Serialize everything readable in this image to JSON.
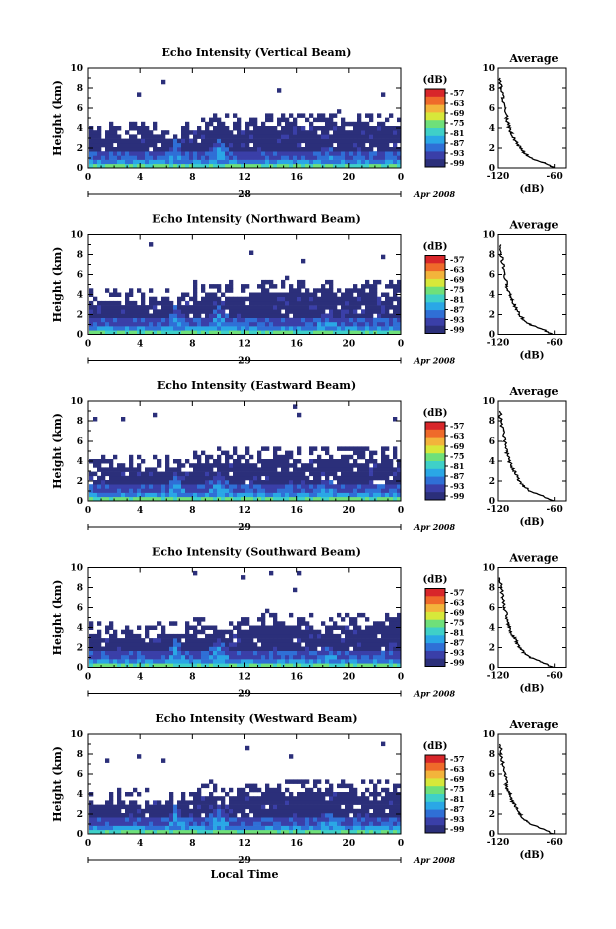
{
  "chart_data": [
    {
      "type": "heatmap",
      "title": "Echo Intensity (Vertical Beam)",
      "ylabel": "Height (km)",
      "xlabel": "",
      "x_ticks": [
        "0",
        "4",
        "8",
        "12",
        "16",
        "20",
        "0"
      ],
      "y_ticks": [
        "0",
        "2",
        "4",
        "6",
        "8",
        "10"
      ],
      "xlim": [
        0,
        24
      ],
      "ylim": [
        0,
        10
      ],
      "date_label": "28",
      "month_year": "Apr 2008",
      "colorbar": {
        "unit": "(dB)",
        "ticks": [
          "-57",
          "-63",
          "-69",
          "-75",
          "-81",
          "-87",
          "-93",
          "-99"
        ]
      },
      "average": {
        "title": "Average",
        "xlabel": "(dB)",
        "x_ticks": [
          "-120",
          "-60"
        ],
        "y_ticks": [
          "0",
          "2",
          "4",
          "6",
          "8",
          "10"
        ],
        "xlim": [
          -120,
          -48
        ],
        "ylim": [
          0,
          10
        ],
        "height_km": [
          0,
          0.5,
          1,
          1.5,
          2,
          2.5,
          3,
          3.5,
          4,
          4.5,
          5,
          6,
          7,
          8,
          9
        ],
        "value_db": [
          -60,
          -70,
          -85,
          -92,
          -96,
          -100,
          -103,
          -106,
          -108,
          -110,
          -111,
          -113,
          -115,
          -117,
          -118
        ]
      }
    },
    {
      "type": "heatmap",
      "title": "Echo Intensity (Northward Beam)",
      "ylabel": "Height (km)",
      "xlabel": "",
      "x_ticks": [
        "0",
        "4",
        "8",
        "12",
        "16",
        "20",
        "0"
      ],
      "y_ticks": [
        "0",
        "2",
        "4",
        "6",
        "8",
        "10"
      ],
      "xlim": [
        0,
        24
      ],
      "ylim": [
        0,
        10
      ],
      "date_label": "29",
      "month_year": "Apr 2008",
      "colorbar": {
        "unit": "(dB)",
        "ticks": [
          "-57",
          "-63",
          "-69",
          "-75",
          "-81",
          "-87",
          "-93",
          "-99"
        ]
      },
      "average": {
        "title": "Average",
        "xlabel": "(dB)",
        "x_ticks": [
          "-120",
          "-60"
        ],
        "y_ticks": [
          "0",
          "2",
          "4",
          "6",
          "8",
          "10"
        ],
        "xlim": [
          -120,
          -48
        ],
        "ylim": [
          0,
          10
        ],
        "height_km": [
          0,
          0.5,
          1,
          1.5,
          2,
          2.5,
          3,
          3.5,
          4,
          4.5,
          5,
          6,
          7,
          8,
          9
        ],
        "value_db": [
          -62,
          -72,
          -86,
          -93,
          -97,
          -100,
          -103,
          -106,
          -108,
          -110,
          -111,
          -113,
          -115,
          -117,
          -118
        ]
      }
    },
    {
      "type": "heatmap",
      "title": "Echo Intensity (Eastward Beam)",
      "ylabel": "Height (km)",
      "xlabel": "",
      "x_ticks": [
        "0",
        "4",
        "8",
        "12",
        "16",
        "20",
        "0"
      ],
      "y_ticks": [
        "0",
        "2",
        "4",
        "6",
        "8",
        "10"
      ],
      "xlim": [
        0,
        24
      ],
      "ylim": [
        0,
        10
      ],
      "date_label": "29",
      "month_year": "Apr 2008",
      "colorbar": {
        "unit": "(dB)",
        "ticks": [
          "-57",
          "-63",
          "-69",
          "-75",
          "-81",
          "-87",
          "-93",
          "-99"
        ]
      },
      "average": {
        "title": "Average",
        "xlabel": "(dB)",
        "x_ticks": [
          "-120",
          "-60"
        ],
        "y_ticks": [
          "0",
          "2",
          "4",
          "6",
          "8",
          "10"
        ],
        "xlim": [
          -120,
          -48
        ],
        "ylim": [
          0,
          10
        ],
        "height_km": [
          0,
          0.5,
          1,
          1.5,
          2,
          2.5,
          3,
          3.5,
          4,
          4.5,
          5,
          6,
          7,
          8,
          9
        ],
        "value_db": [
          -62,
          -72,
          -86,
          -93,
          -97,
          -100,
          -103,
          -106,
          -108,
          -110,
          -111,
          -113,
          -115,
          -117,
          -118
        ]
      }
    },
    {
      "type": "heatmap",
      "title": "Echo Intensity (Southward Beam)",
      "ylabel": "Height (km)",
      "xlabel": "",
      "x_ticks": [
        "0",
        "4",
        "8",
        "12",
        "16",
        "20",
        "0"
      ],
      "y_ticks": [
        "0",
        "2",
        "4",
        "6",
        "8",
        "10"
      ],
      "xlim": [
        0,
        24
      ],
      "ylim": [
        0,
        10
      ],
      "date_label": "29",
      "month_year": "Apr 2008",
      "colorbar": {
        "unit": "(dB)",
        "ticks": [
          "-57",
          "-63",
          "-69",
          "-75",
          "-81",
          "-87",
          "-93",
          "-99"
        ]
      },
      "average": {
        "title": "Average",
        "xlabel": "(dB)",
        "x_ticks": [
          "-120",
          "-60"
        ],
        "y_ticks": [
          "0",
          "2",
          "4",
          "6",
          "8",
          "10"
        ],
        "xlim": [
          -120,
          -48
        ],
        "ylim": [
          0,
          10
        ],
        "height_km": [
          0,
          0.5,
          1,
          1.5,
          2,
          2.5,
          3,
          3.5,
          4,
          4.5,
          5,
          6,
          7,
          8,
          9
        ],
        "value_db": [
          -62,
          -72,
          -86,
          -93,
          -97,
          -100,
          -103,
          -106,
          -108,
          -110,
          -111,
          -113,
          -115,
          -117,
          -118
        ]
      }
    },
    {
      "type": "heatmap",
      "title": "Echo Intensity (Westward Beam)",
      "ylabel": "Height (km)",
      "xlabel": "Local Time",
      "x_ticks": [
        "0",
        "4",
        "8",
        "12",
        "16",
        "20",
        "0"
      ],
      "y_ticks": [
        "0",
        "2",
        "4",
        "6",
        "8",
        "10"
      ],
      "xlim": [
        0,
        24
      ],
      "ylim": [
        0,
        10
      ],
      "date_label": "29",
      "month_year": "Apr 2008",
      "colorbar": {
        "unit": "(dB)",
        "ticks": [
          "-57",
          "-63",
          "-69",
          "-75",
          "-81",
          "-87",
          "-93",
          "-99"
        ]
      },
      "average": {
        "title": "Average",
        "xlabel": "(dB)",
        "x_ticks": [
          "-120",
          "-60"
        ],
        "y_ticks": [
          "0",
          "2",
          "4",
          "6",
          "8",
          "10"
        ],
        "xlim": [
          -120,
          -48
        ],
        "ylim": [
          0,
          10
        ],
        "height_km": [
          0,
          0.5,
          1,
          1.5,
          2,
          2.5,
          3,
          3.5,
          4,
          4.5,
          5,
          6,
          7,
          8,
          9
        ],
        "value_db": [
          -62,
          -72,
          -86,
          -93,
          -97,
          -100,
          -103,
          -106,
          -108,
          -110,
          -111,
          -113,
          -115,
          -117,
          -118
        ]
      }
    }
  ],
  "palette": [
    "#2b2f7a",
    "#3a3fa8",
    "#2f6fd6",
    "#2aa7e6",
    "#3fd0c8",
    "#6fe07a",
    "#d7e83a",
    "#f3b43b",
    "#ef6a2a",
    "#d8262a"
  ]
}
